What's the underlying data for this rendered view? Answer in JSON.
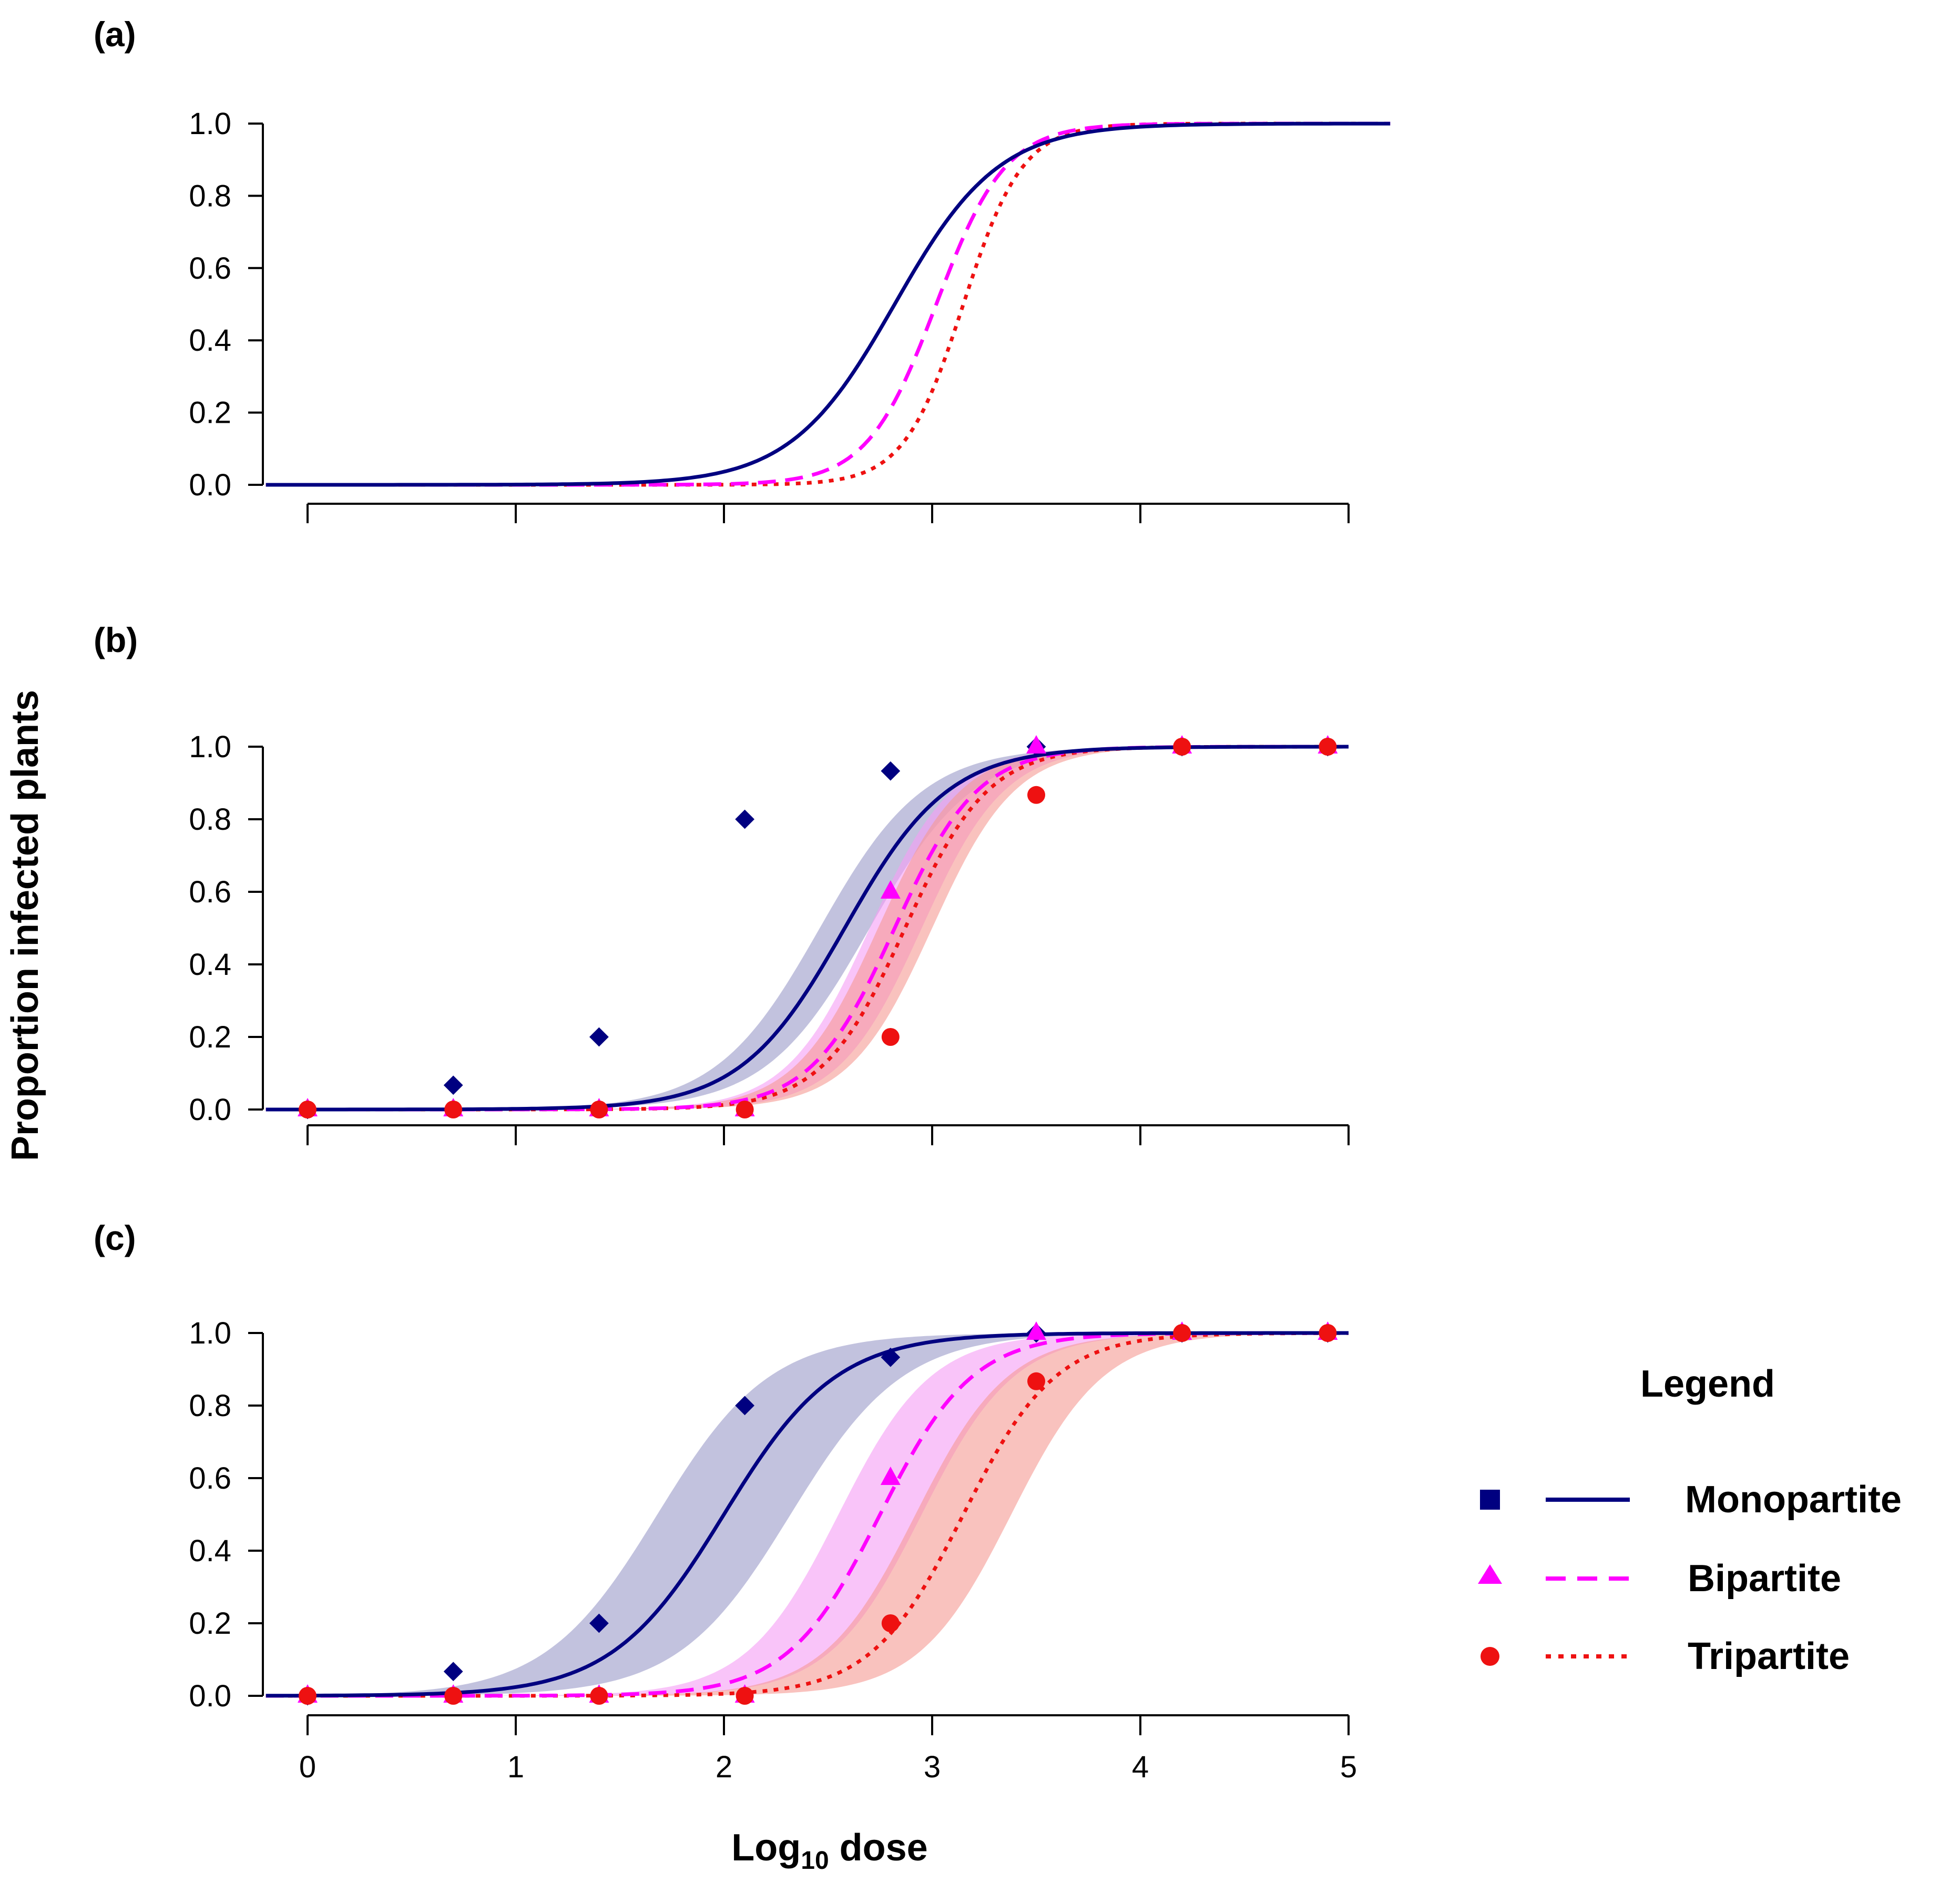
{
  "chart_data": [
    {
      "panel": "(a)",
      "type": "line",
      "xlim": [
        -0.2,
        5.2
      ],
      "ylim": [
        0,
        1
      ],
      "yticks": [
        0.0,
        0.2,
        0.4,
        0.6,
        0.8,
        1.0
      ],
      "ytick_labels": [
        "0.0",
        "0.2",
        "0.4",
        "0.6",
        "0.8",
        "1.0"
      ],
      "xticks": [
        0,
        1,
        2,
        3,
        4,
        5
      ],
      "xtick_labels": [],
      "series": [
        {
          "name": "Monopartite",
          "curve": {
            "x50": 2.82,
            "k": 4.0
          }
        },
        {
          "name": "Bipartite",
          "curve": {
            "x50": 3.02,
            "k": 6.0
          }
        },
        {
          "name": "Tripartite",
          "curve": {
            "x50": 3.15,
            "k": 7.0
          }
        }
      ]
    },
    {
      "panel": "(b)",
      "type": "line",
      "xlim": [
        -0.2,
        5.0
      ],
      "ylim": [
        0,
        1
      ],
      "yticks": [
        0.0,
        0.2,
        0.4,
        0.6,
        0.8,
        1.0
      ],
      "ytick_labels": [
        "0.0",
        "0.2",
        "0.4",
        "0.6",
        "0.8",
        "1.0"
      ],
      "xticks": [
        0,
        1,
        2,
        3,
        4,
        5
      ],
      "xtick_labels": [],
      "series": [
        {
          "name": "Monopartite",
          "curve": {
            "x50": 2.58,
            "k": 4.0
          },
          "band": {
            "lo_x50": 2.7,
            "hi_x50": 2.46
          },
          "points": [
            [
              0,
              0.0
            ],
            [
              0.7,
              0.067
            ],
            [
              1.4,
              0.2
            ],
            [
              2.1,
              0.8
            ],
            [
              2.8,
              0.933
            ],
            [
              3.5,
              1.0
            ],
            [
              4.2,
              1.0
            ],
            [
              4.9,
              1.0
            ]
          ]
        },
        {
          "name": "Bipartite",
          "curve": {
            "x50": 2.82,
            "k": 5.0
          },
          "band": {
            "lo_x50": 2.95,
            "hi_x50": 2.7
          },
          "points": [
            [
              0,
              0.0
            ],
            [
              0.7,
              0.0
            ],
            [
              1.4,
              0.0
            ],
            [
              2.1,
              0.0
            ],
            [
              2.8,
              0.6
            ],
            [
              3.5,
              1.0
            ],
            [
              4.2,
              1.0
            ],
            [
              4.9,
              1.0
            ]
          ]
        },
        {
          "name": "Tripartite",
          "curve": {
            "x50": 2.87,
            "k": 5.0
          },
          "band": {
            "lo_x50": 3.0,
            "hi_x50": 2.74
          },
          "points": [
            [
              0,
              0.0
            ],
            [
              0.7,
              0.0
            ],
            [
              1.4,
              0.0
            ],
            [
              2.1,
              0.0
            ],
            [
              2.8,
              0.2
            ],
            [
              3.5,
              0.867
            ],
            [
              4.2,
              1.0
            ],
            [
              4.9,
              1.0
            ]
          ]
        }
      ]
    },
    {
      "panel": "(c)",
      "type": "line",
      "xlim": [
        -0.2,
        5.0
      ],
      "ylim": [
        0,
        1
      ],
      "yticks": [
        0.0,
        0.2,
        0.4,
        0.6,
        0.8,
        1.0
      ],
      "ytick_labels": [
        "0.0",
        "0.2",
        "0.4",
        "0.6",
        "0.8",
        "1.0"
      ],
      "xticks": [
        0,
        1,
        2,
        3,
        4,
        5
      ],
      "xtick_labels": [
        "0",
        "1",
        "2",
        "3",
        "4",
        "5"
      ],
      "series": [
        {
          "name": "Monopartite",
          "curve": {
            "x50": 2.0,
            "k": 3.7
          },
          "band": {
            "lo_x50": 2.32,
            "hi_x50": 1.68
          },
          "points": [
            [
              0,
              0.0
            ],
            [
              0.7,
              0.067
            ],
            [
              1.4,
              0.2
            ],
            [
              2.1,
              0.8
            ],
            [
              2.8,
              0.933
            ],
            [
              3.5,
              1.0
            ],
            [
              4.2,
              1.0
            ],
            [
              4.9,
              1.0
            ]
          ]
        },
        {
          "name": "Bipartite",
          "curve": {
            "x50": 2.75,
            "k": 4.5
          },
          "band": {
            "lo_x50": 2.95,
            "hi_x50": 2.55
          },
          "points": [
            [
              0,
              0.0
            ],
            [
              0.7,
              0.0
            ],
            [
              1.4,
              0.0
            ],
            [
              2.1,
              0.0
            ],
            [
              2.8,
              0.6
            ],
            [
              3.5,
              1.0
            ],
            [
              4.2,
              1.0
            ],
            [
              4.9,
              1.0
            ]
          ]
        },
        {
          "name": "Tripartite",
          "curve": {
            "x50": 3.15,
            "k": 4.5
          },
          "band": {
            "lo_x50": 3.38,
            "hi_x50": 2.92
          },
          "points": [
            [
              0,
              0.0
            ],
            [
              0.7,
              0.0
            ],
            [
              1.4,
              0.0
            ],
            [
              2.1,
              0.0
            ],
            [
              2.8,
              0.2
            ],
            [
              3.5,
              0.867
            ],
            [
              4.2,
              1.0
            ],
            [
              4.9,
              1.0
            ]
          ]
        }
      ]
    }
  ],
  "axes": {
    "ylabel": "Proportion infected plants",
    "xlabel_prefix": "Log",
    "xlabel_sub": "10",
    "xlabel_suffix": " dose"
  },
  "legend": {
    "title": "Legend",
    "items": [
      {
        "label": "Monopartite",
        "marker": "square",
        "line": "solid"
      },
      {
        "label": "Bipartite",
        "marker": "triangle",
        "line": "dashed"
      },
      {
        "label": "Tripartite",
        "marker": "circle",
        "line": "dotted"
      }
    ]
  },
  "colors": {
    "Monopartite": "#000080",
    "Bipartite": "#ff00ff",
    "Tripartite": "#ee1111",
    "Monopartite_band": "#9a9ac8",
    "Bipartite_band": "#f59cf5",
    "Tripartite_band": "#f59a92"
  }
}
